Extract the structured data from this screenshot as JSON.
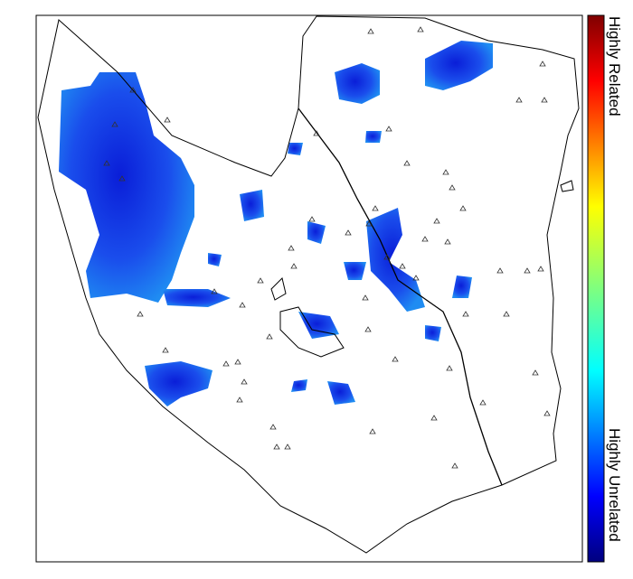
{
  "colorbar": {
    "top_label": "Highly Related",
    "bottom_label": "Highly Unrelated"
  }
}
